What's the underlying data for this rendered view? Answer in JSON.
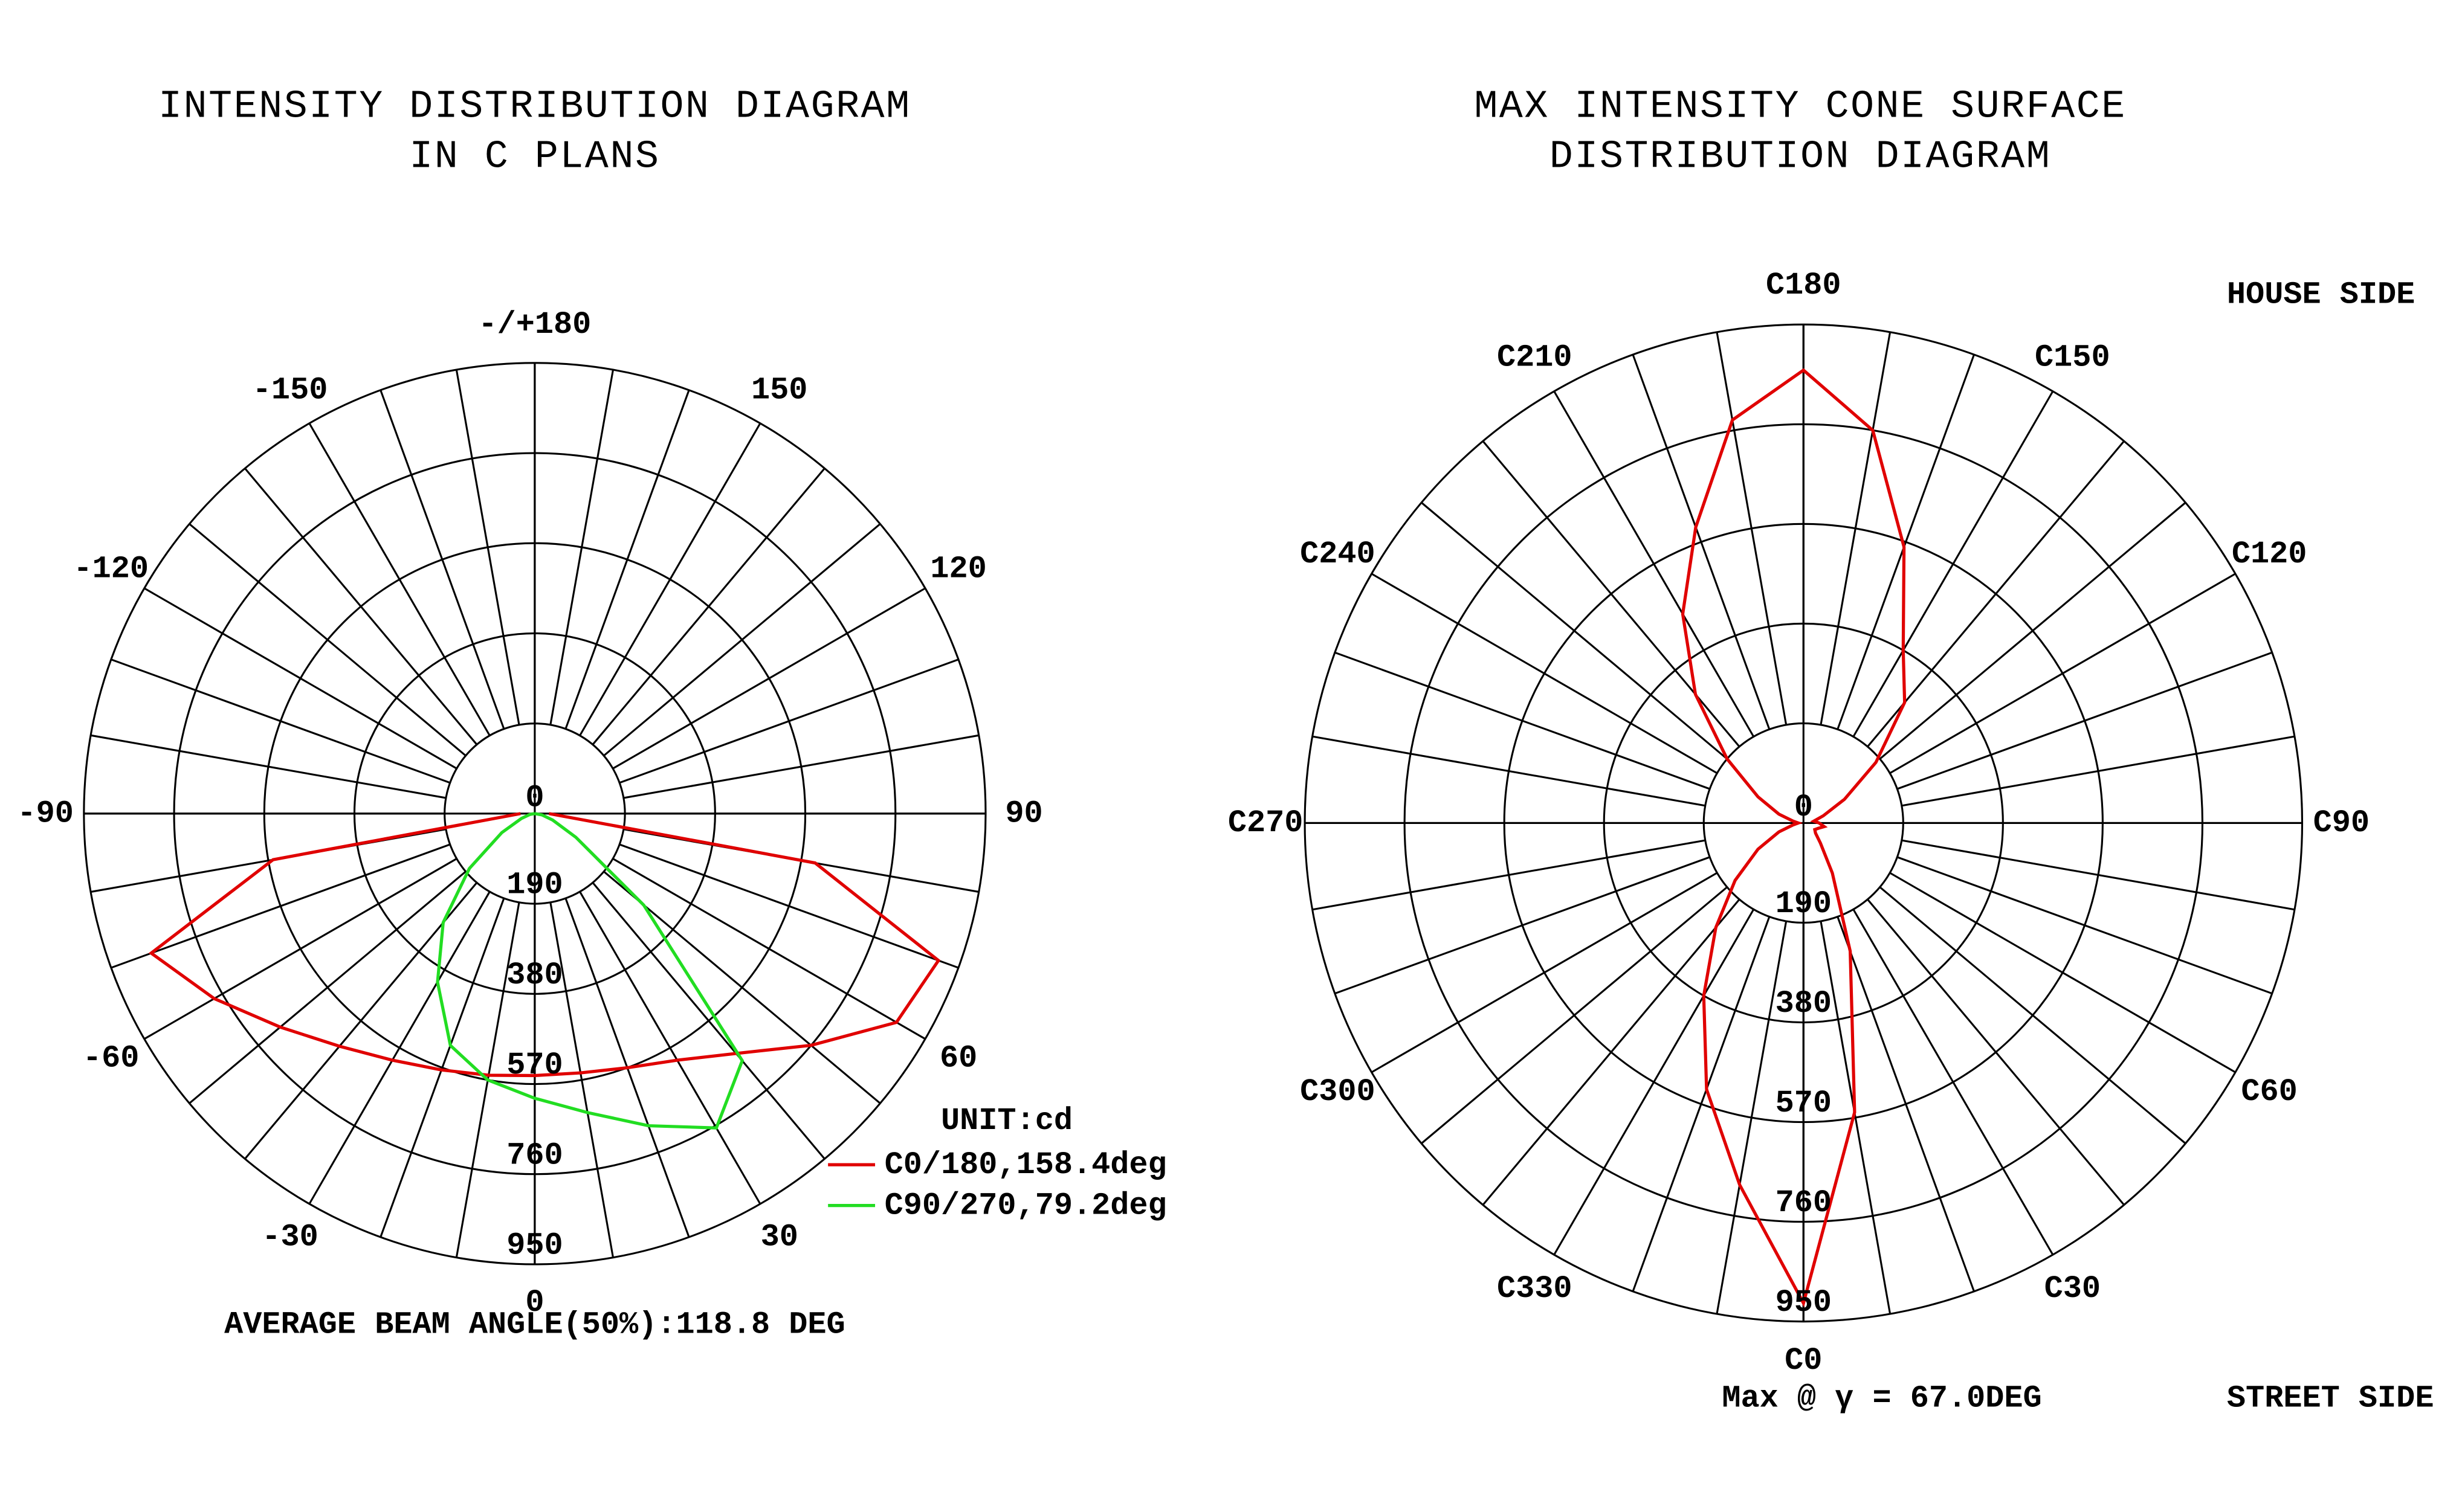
{
  "chart_data": [
    {
      "type": "polar",
      "title": [
        "INTENSITY DISTRIBUTION DIAGRAM",
        "IN C PLANS"
      ],
      "x": [
        -90,
        -80,
        -70,
        -60,
        -50,
        -40,
        -30,
        -20,
        -10,
        0,
        10,
        20,
        30,
        40,
        50,
        60,
        70,
        80,
        90
      ],
      "series": [
        {
          "name": "C0/180,158.4deg",
          "color": "#e00000",
          "values": [
            30,
            560,
            860,
            780,
            700,
            640,
            600,
            575,
            560,
            552,
            555,
            570,
            600,
            660,
            760,
            880,
            905,
            600,
            30
          ]
        },
        {
          "name": "C90/270,79.2deg",
          "color": "#22dd22",
          "values": [
            0,
            10,
            30,
            80,
            180,
            300,
            410,
            520,
            570,
            600,
            640,
            700,
            765,
            680,
            300,
            100,
            40,
            15,
            0
          ]
        }
      ],
      "rlim": [
        0,
        950
      ],
      "rticks": [
        0,
        190,
        380,
        570,
        760,
        950
      ],
      "thetaticks": [
        {
          "value": 180,
          "label": "-/+180"
        },
        -150,
        -120,
        -90,
        -60,
        -30,
        0,
        30,
        60,
        90,
        120,
        150
      ],
      "unit_label": "UNIT:cd",
      "footer": "AVERAGE BEAM ANGLE(50%):118.8 DEG",
      "legend": "lower right",
      "grid": true
    },
    {
      "type": "polar",
      "title": [
        "MAX INTENSITY CONE SURFACE",
        "DISTRIBUTION DIAGRAM"
      ],
      "x": [
        0,
        10,
        20,
        30,
        40,
        50,
        60,
        70,
        80,
        90,
        100,
        110,
        120,
        130,
        140,
        150,
        160,
        170,
        180,
        190,
        200,
        210,
        220,
        230,
        240,
        250,
        260,
        270,
        280,
        290,
        300,
        310,
        320,
        330,
        340,
        350
      ],
      "series": [
        {
          "color": "#e00000",
          "values": [
            915,
            560,
            260,
            110,
            50,
            30,
            25,
            30,
            40,
            30,
            20,
            40,
            90,
            180,
            300,
            380,
            560,
            760,
            863,
            780,
            600,
            460,
            320,
            190,
            100,
            50,
            20,
            10,
            20,
            50,
            100,
            170,
            260,
            380,
            540,
            700
          ]
        }
      ],
      "rlim": [
        0,
        950
      ],
      "rticks": [
        0,
        190,
        380,
        570,
        760,
        950
      ],
      "thetaticks": [
        {
          "value": 0,
          "label": "C0"
        },
        {
          "value": 30,
          "label": "C30"
        },
        {
          "value": 60,
          "label": "C60"
        },
        {
          "value": 90,
          "label": "C90"
        },
        {
          "value": 120,
          "label": "C120"
        },
        {
          "value": 150,
          "label": "C150"
        },
        {
          "value": 180,
          "label": "C180"
        },
        {
          "value": 210,
          "label": "C210"
        },
        {
          "value": 240,
          "label": "C240"
        },
        {
          "value": 270,
          "label": "C270"
        },
        {
          "value": 300,
          "label": "C300"
        },
        {
          "value": 330,
          "label": "C330"
        }
      ],
      "annotations": [
        "HOUSE SIDE",
        "STREET SIDE"
      ],
      "footer": "Max @ γ = 67.0DEG",
      "grid": true
    }
  ]
}
